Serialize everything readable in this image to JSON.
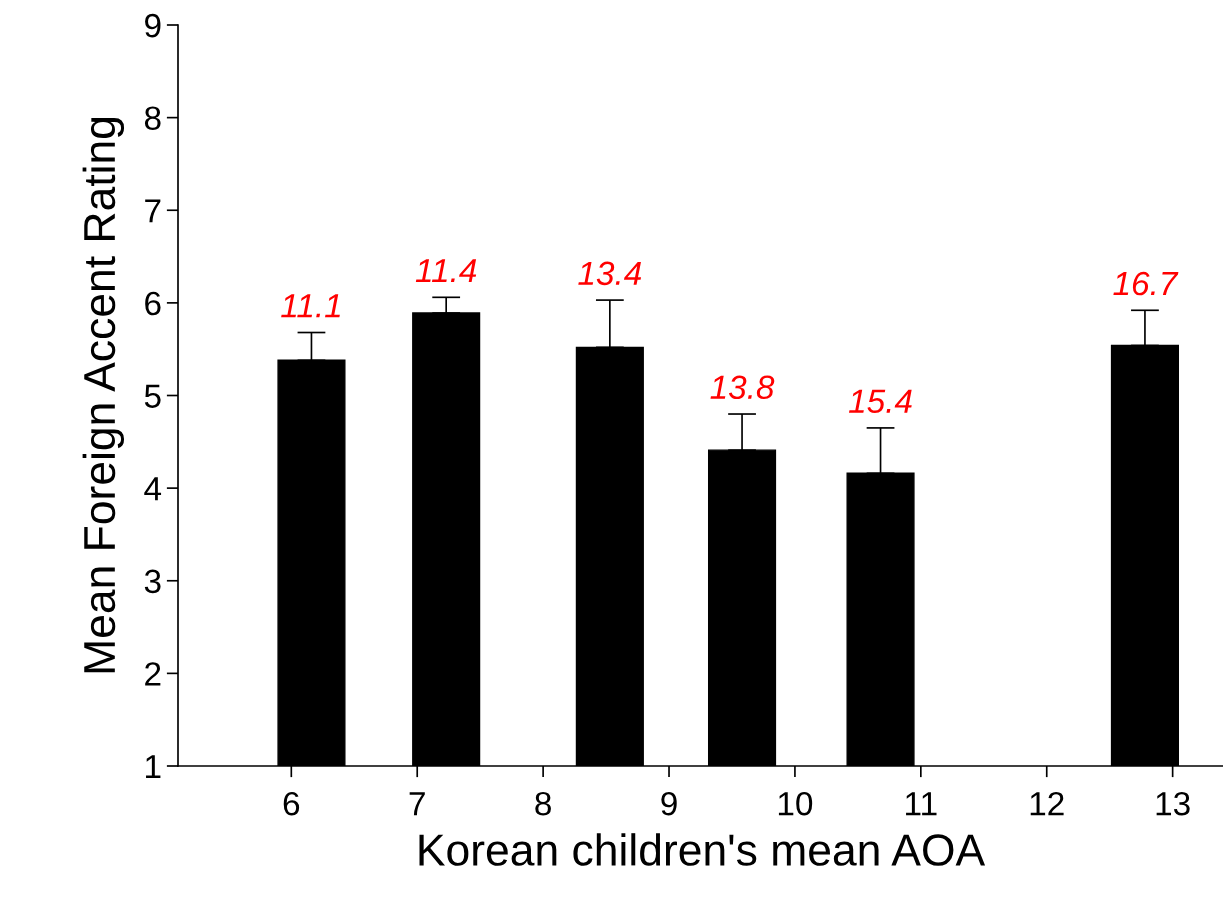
{
  "chart_data": {
    "type": "bar",
    "xlabel": "Korean children's mean AOA",
    "ylabel": "Mean Foreign Accent Rating",
    "x": [
      6.16,
      7.23,
      8.53,
      9.58,
      10.68,
      12.78
    ],
    "values": [
      5.38,
      5.89,
      5.52,
      4.41,
      4.16,
      5.54
    ],
    "errors": [
      [
        5.38,
        5.68
      ],
      [
        5.89,
        6.06
      ],
      [
        5.52,
        6.03
      ],
      [
        4.41,
        4.8
      ],
      [
        4.16,
        4.65
      ],
      [
        5.54,
        5.92
      ]
    ],
    "color": "#000000",
    "xlim": [
      5.1,
      13.4
    ],
    "xticks": [
      6,
      7,
      8,
      9,
      10,
      11,
      12,
      13
    ],
    "ylim": [
      1,
      9
    ],
    "yticks": [
      1,
      2,
      3,
      4,
      5,
      6,
      7,
      8,
      9
    ],
    "grid": false,
    "legend": false,
    "annotations": [
      {
        "text": "11.1",
        "x": 6.16,
        "y": 5.68
      },
      {
        "text": "11.4",
        "x": 7.23,
        "y": 6.06
      },
      {
        "text": "13.4",
        "x": 8.53,
        "y": 6.03
      },
      {
        "text": "13.8",
        "x": 9.58,
        "y": 4.8
      },
      {
        "text": "15.4",
        "x": 10.68,
        "y": 4.65
      },
      {
        "text": "16.7",
        "x": 12.78,
        "y": 5.92
      }
    ]
  }
}
